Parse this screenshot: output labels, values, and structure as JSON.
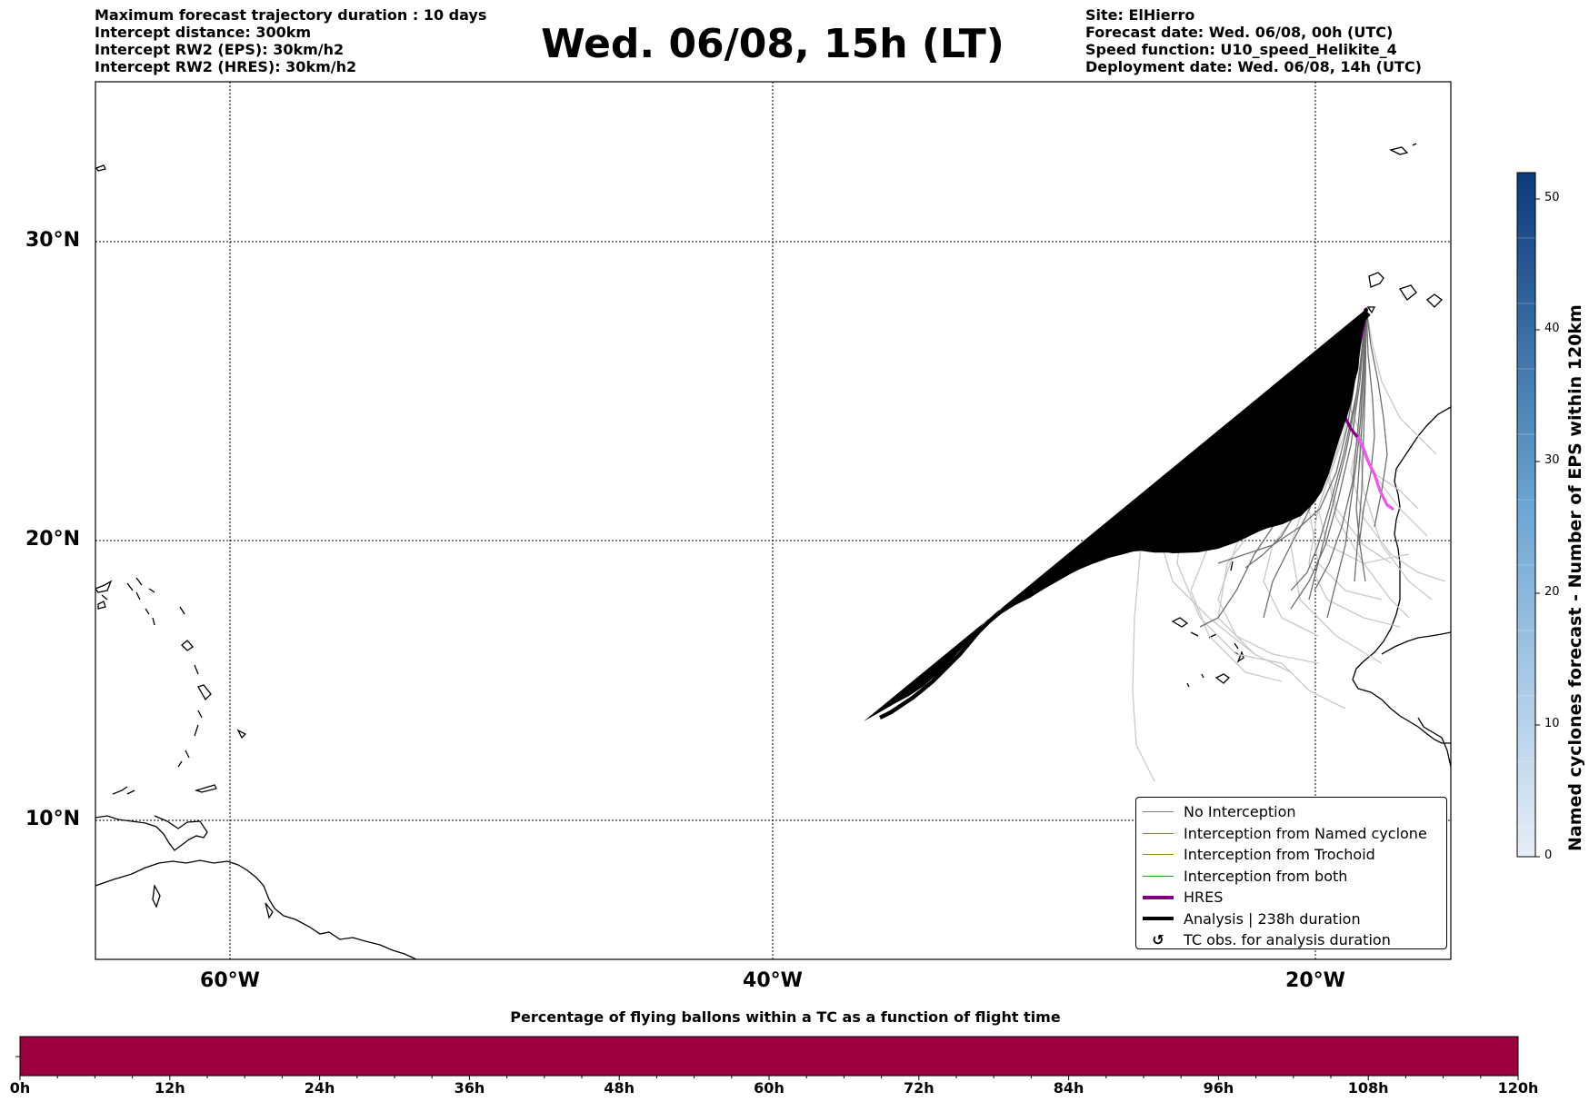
{
  "header_left": [
    "Maximum forecast trajectory duration : 10 days",
    "Intercept distance: 300km",
    "Intercept RW2 (EPS):  30km/h2",
    "Intercept RW2 (HRES): 30km/h2"
  ],
  "title": "Wed. 06/08, 15h (LT)",
  "header_right": [
    "Site: ElHierro",
    "Forecast date: Wed. 06/08, 00h (UTC)",
    "Speed function: U10_speed_Helikite_4",
    "Deployment date: Wed. 06/08, 14h (UTC)"
  ],
  "map": {
    "lat_ticks": [
      "30°N",
      "20°N",
      "10°N"
    ],
    "lon_ticks": [
      "60°W",
      "40°W",
      "20°W"
    ],
    "grid": true,
    "colors": {
      "eps_tracks": "#6e6e6e",
      "eps_tracks_light": "#c8c8c8",
      "hres": "#800080",
      "hres_light": "#ee55ee",
      "analysis": "#000000",
      "coast": "#000000"
    },
    "legend": [
      {
        "label": "No Interception",
        "color": "#808080",
        "style": "thin"
      },
      {
        "label": "Interception from Named cyclone",
        "color": "#e8593a",
        "style": "thin"
      },
      {
        "label": "Interception from Trochoid",
        "color": "#8a8a1a",
        "style": "thin"
      },
      {
        "label": "Interception from both",
        "color": "#2ca02c",
        "style": "thin"
      },
      {
        "label": "HRES",
        "color": "#800080",
        "style": "thick"
      },
      {
        "label": "Analysis | 238h duration",
        "color": "#000000",
        "style": "thick"
      },
      {
        "label": "TC obs. for analysis duration",
        "color": "#000000",
        "style": "symbol",
        "icon": "↺"
      }
    ]
  },
  "colorbar": {
    "label": "Named cyclones forecast - Number of EPS within 120km",
    "ticks": [
      "0",
      "10",
      "20",
      "30",
      "40",
      "50"
    ],
    "min": 0,
    "max": 52,
    "color_low": "#e6eef8",
    "color_high": "#0b3a7a"
  },
  "bottom_bar": {
    "title": "Percentage of flying ballons within a TC as a function of flight time",
    "labels": [
      "0h",
      "12h",
      "24h",
      "36h",
      "48h",
      "60h",
      "72h",
      "84h",
      "96h",
      "108h",
      "120h"
    ],
    "color": "#9b003c"
  }
}
